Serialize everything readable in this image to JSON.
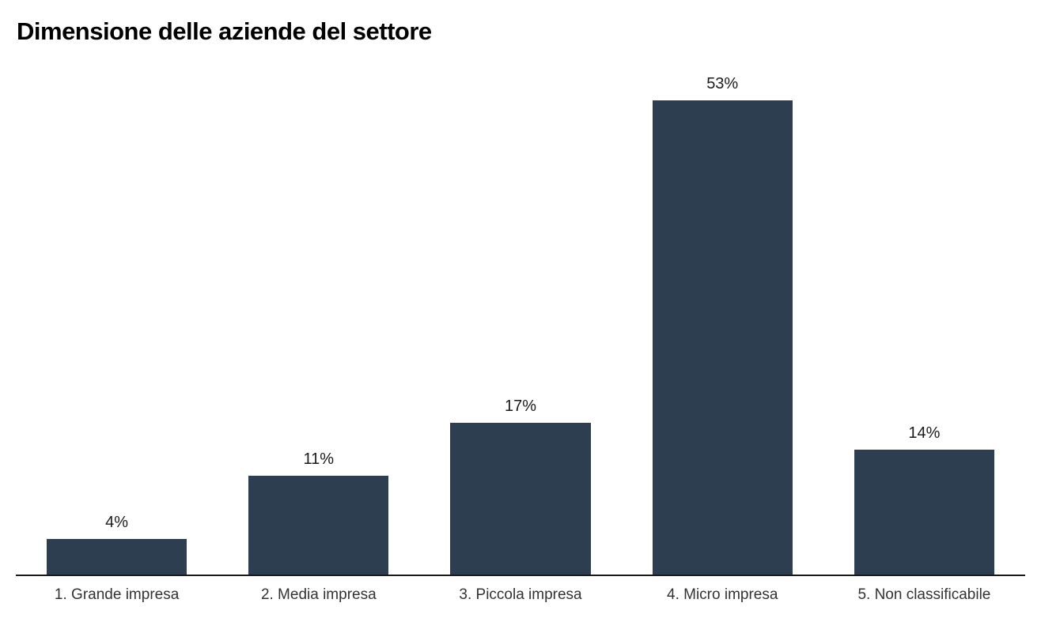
{
  "chart_data": {
    "type": "bar",
    "title": "Dimensione delle aziende del settore",
    "categories": [
      "1. Grande impresa",
      "2. Media impresa",
      "3. Piccola impresa",
      "4. Micro impresa",
      "5. Non classificabile"
    ],
    "values": [
      4,
      11,
      17,
      53,
      14
    ],
    "value_labels": [
      "4%",
      "11%",
      "17%",
      "53%",
      "14%"
    ],
    "unit": "%",
    "ylim": [
      0,
      53
    ],
    "grid": false,
    "legend": false,
    "bar_color": "#2c3e50",
    "axis_line_color": "#1a1a1a",
    "background_color": "#ffffff"
  }
}
